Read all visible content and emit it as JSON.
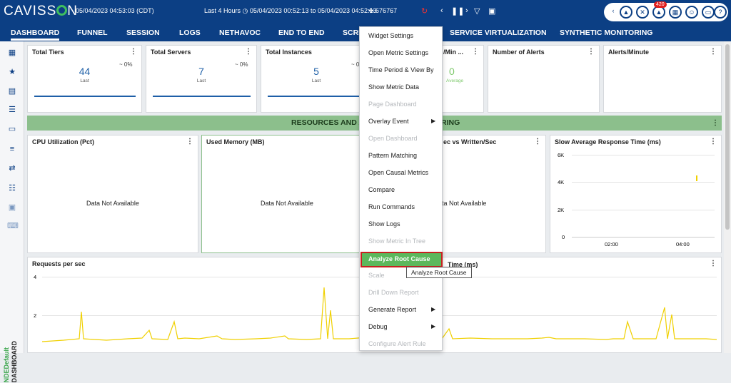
{
  "topbar": {
    "logo": "CAVISS",
    "logo_end": "N",
    "datetime": "05/04/2023 04:53:03 (CDT)",
    "range": "Last 4 Hours  ◷ 05/04/2023 00:52:13 to 05/04/2023 04:52:13",
    "tx_count": "676767",
    "notifications": "420"
  },
  "nav": [
    "DASHBOARD",
    "FUNNEL",
    "SESSION",
    "LOGS",
    "NETHAVOC",
    "END TO END",
    "SCRI",
    "SERVICE VIRTUALIZATION",
    "SYNTHETIC MONITORING"
  ],
  "sidebar": {
    "label_top": "NDEDefault",
    "label_bottom": "DASHBOARD"
  },
  "kpis": [
    {
      "title": "Total Tiers",
      "value": "44",
      "sub": "Last",
      "delta": "~ 0%"
    },
    {
      "title": "Total Servers",
      "value": "7",
      "sub": "Last",
      "delta": "~ 0%"
    },
    {
      "title": "Total Instances",
      "value": "5",
      "sub": "Last",
      "delta": "~ 0"
    },
    {
      "title": "/Min ...",
      "value": "0",
      "sub": "Average",
      "delta": ""
    },
    {
      "title": "Number of Alerts",
      "value": "",
      "sub": "",
      "delta": ""
    },
    {
      "title": "Alerts/Minute",
      "value": "",
      "sub": "",
      "delta": ""
    }
  ],
  "section": {
    "title": "RESOURCES AND A",
    "title_end": "RING"
  },
  "panels": [
    {
      "title": "CPU Utilization (Pct)",
      "msg": "Data Not Available"
    },
    {
      "title": "Used Memory (MB)",
      "msg": "Data Not Available"
    },
    {
      "title": "ec vs Written/Sec",
      "msg": "ta Not Available"
    },
    {
      "title": "Slow Average Response Time (ms)",
      "msg": ""
    }
  ],
  "slowchart": {
    "yticks": [
      "6K",
      "4K",
      "2K",
      "0"
    ],
    "xticks": [
      "02:00",
      "04:00"
    ]
  },
  "requests": {
    "title": "Requests per sec",
    "yticks": [
      "4",
      "2"
    ],
    "right_title": "Time (ms)"
  },
  "menu": {
    "items": [
      {
        "label": "Widget Settings",
        "disabled": false,
        "sub": false
      },
      {
        "label": "Open Metric Settings",
        "disabled": false,
        "sub": false
      },
      {
        "label": "Time Period & View By",
        "disabled": false,
        "sub": false
      },
      {
        "label": "Show Metric Data",
        "disabled": false,
        "sub": false
      },
      {
        "label": "Page Dashboard",
        "disabled": true,
        "sub": false
      },
      {
        "label": "Overlay Event",
        "disabled": false,
        "sub": true
      },
      {
        "label": "Open Dashboard",
        "disabled": true,
        "sub": false
      },
      {
        "label": "Pattern Matching",
        "disabled": false,
        "sub": false
      },
      {
        "label": "Open Causal Metrics",
        "disabled": false,
        "sub": false
      },
      {
        "label": "Compare",
        "disabled": false,
        "sub": false
      },
      {
        "label": "Run Commands",
        "disabled": false,
        "sub": false
      },
      {
        "label": "Show Logs",
        "disabled": false,
        "sub": false
      },
      {
        "label": "Show Metric In Tree",
        "disabled": true,
        "sub": false
      },
      {
        "label": "Analyze Root Cause",
        "disabled": false,
        "sub": false,
        "highlighted": true
      },
      {
        "label": "Scale",
        "disabled": true,
        "sub": false
      },
      {
        "label": "Drill Down Report",
        "disabled": true,
        "sub": false
      },
      {
        "label": "Generate Report",
        "disabled": false,
        "sub": true
      },
      {
        "label": "Debug",
        "disabled": false,
        "sub": true
      },
      {
        "label": "Configure Alert Rule",
        "disabled": true,
        "sub": false
      }
    ]
  },
  "tooltip": "Analyze Root Cause",
  "colors": {
    "brand": "#0c3f84",
    "section": "#8cbf8c",
    "chart_line": "#f0d000",
    "highlight": "#5cb85c"
  }
}
